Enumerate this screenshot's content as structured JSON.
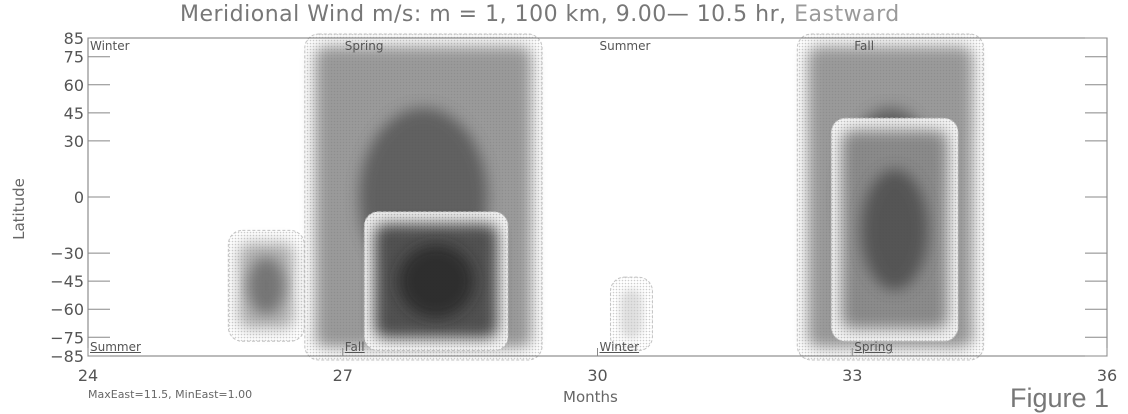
{
  "title": {
    "main": "Meridional Wind m/s: m = 1, 100 km,  9.00— 10.5 hr, ",
    "direction": "Eastward"
  },
  "footnote": "MaxEast=11.5, MinEast=1.00",
  "figure_label": "Figure 1",
  "chart_data": {
    "type": "heatmap",
    "title": "Meridional Wind m/s: m = 1, 100 km,  9.00— 10.5 hr, Eastward",
    "xlabel": "Months",
    "ylabel": "Latitude",
    "xlim": [
      24,
      36
    ],
    "ylim": [
      -85,
      85
    ],
    "x_ticks": [
      24,
      27,
      30,
      33,
      36
    ],
    "y_ticks": [
      85,
      75,
      60,
      45,
      30,
      0,
      -30,
      -45,
      -60,
      -75,
      -85
    ],
    "contour_range": {
      "max": 11.5,
      "min": 1.0
    },
    "season_labels_top": [
      {
        "x": 24.0,
        "label": "Winter"
      },
      {
        "x": 27.0,
        "label": "Spring"
      },
      {
        "x": 30.0,
        "label": "Summer"
      },
      {
        "x": 33.0,
        "label": "Fall"
      }
    ],
    "season_labels_bottom": [
      {
        "x": 24.0,
        "label": "Summer"
      },
      {
        "x": 27.0,
        "label": "Fall"
      },
      {
        "x": 30.0,
        "label": "Winter"
      },
      {
        "x": 33.0,
        "label": "Spring"
      }
    ],
    "regions": [
      {
        "x_range": [
          25.7,
          26.5
        ],
        "y_range": [
          -75,
          -20
        ],
        "peak": 5
      },
      {
        "x_range": [
          26.6,
          29.3
        ],
        "y_range": [
          -85,
          85
        ],
        "peak": 7
      },
      {
        "x_range": [
          27.3,
          28.9
        ],
        "y_range": [
          -80,
          -10
        ],
        "peak": 11.5
      },
      {
        "x_range": [
          30.2,
          30.6
        ],
        "y_range": [
          -80,
          -45
        ],
        "peak": 1
      },
      {
        "x_range": [
          32.4,
          34.5
        ],
        "y_range": [
          -85,
          85
        ],
        "peak": 7
      },
      {
        "x_range": [
          32.8,
          34.2
        ],
        "y_range": [
          -75,
          40
        ],
        "peak": 8
      }
    ]
  }
}
